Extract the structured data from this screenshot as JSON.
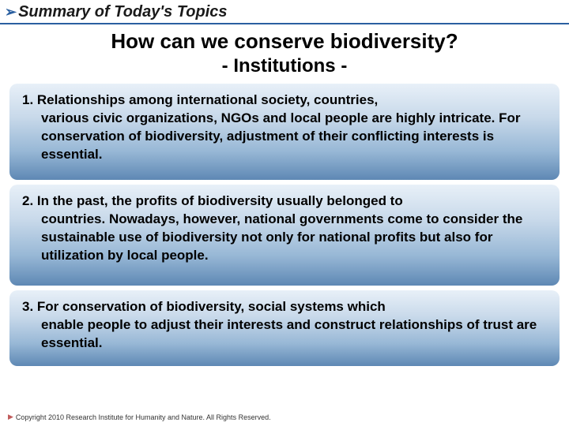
{
  "header": {
    "bullet": "➢",
    "text": "Summary of Today's Topics"
  },
  "title": {
    "line1": "How can we conserve biodiversity?",
    "line2": "- Institutions -"
  },
  "cards": [
    {
      "num": "1. ",
      "firstline": "Relationships among international society, countries,",
      "rest": "various civic organizations, NGOs and local people are highly intricate. For conservation of biodiversity, adjustment of their conflicting interests is essential."
    },
    {
      "num": "2. ",
      "firstline": "In the past, the profits of biodiversity usually belonged to",
      "rest": "countries. Nowadays, however, national governments come to consider the sustainable use of biodiversity not only for national profits but also for utilization by local people."
    },
    {
      "num": "3. ",
      "firstline": "For conservation of biodiversity, social systems which",
      "rest": "enable people to adjust their interests and construct relationships of trust are essential."
    }
  ],
  "footer": {
    "bullet": "▶",
    "text": "Copyright 2010 Research Institute for Humanity and Nature. All Rights Reserved."
  },
  "colors": {
    "header_rule": "#2a5fa0",
    "card_gradient_top": "#e8f0f8",
    "card_gradient_bottom": "#5e88b4",
    "footer_bullet": "#c05a5a"
  }
}
